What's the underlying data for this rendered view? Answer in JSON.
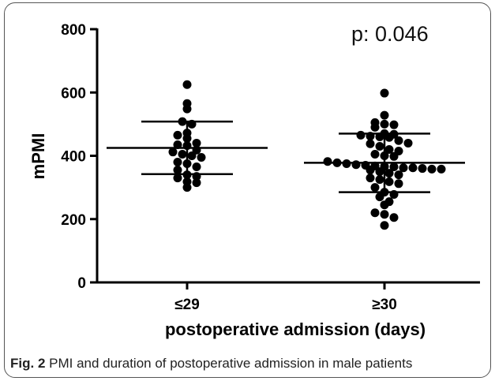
{
  "caption": {
    "label": "Fig. 2",
    "text": "PMI and duration of postoperative admission in male patients"
  },
  "chart_data": {
    "type": "scatter",
    "title": "",
    "xlabel": "postoperative admission (days)",
    "ylabel": "mPMI",
    "ylim": [
      0,
      800
    ],
    "yticks": [
      "0",
      "200",
      "400",
      "600",
      "800"
    ],
    "categories": [
      "≤29",
      "≥30"
    ],
    "annotation": "p: 0.046",
    "grid": false,
    "point_color": "#000000",
    "groups": [
      {
        "category": "≤29",
        "mean": 425,
        "sd_upper": 508,
        "sd_lower": 342,
        "points": [
          625,
          565,
          548,
          508,
          500,
          472,
          465,
          455,
          440,
          435,
          432,
          418,
          412,
          405,
          400,
          395,
          380,
          375,
          365,
          355,
          340,
          335,
          330,
          318,
          315,
          300
        ]
      },
      {
        "category": "≥30",
        "mean": 378,
        "sd_upper": 470,
        "sd_lower": 285,
        "points": [
          598,
          528,
          505,
          500,
          498,
          490,
          470,
          468,
          465,
          462,
          460,
          458,
          448,
          440,
          438,
          430,
          420,
          415,
          405,
          400,
          398,
          382,
          378,
          375,
          372,
          370,
          368,
          366,
          365,
          362,
          362,
          360,
          358,
          358,
          355,
          350,
          345,
          340,
          330,
          325,
          318,
          312,
          300,
          285,
          278,
          270,
          255,
          245,
          220,
          215,
          205,
          180
        ]
      }
    ]
  }
}
